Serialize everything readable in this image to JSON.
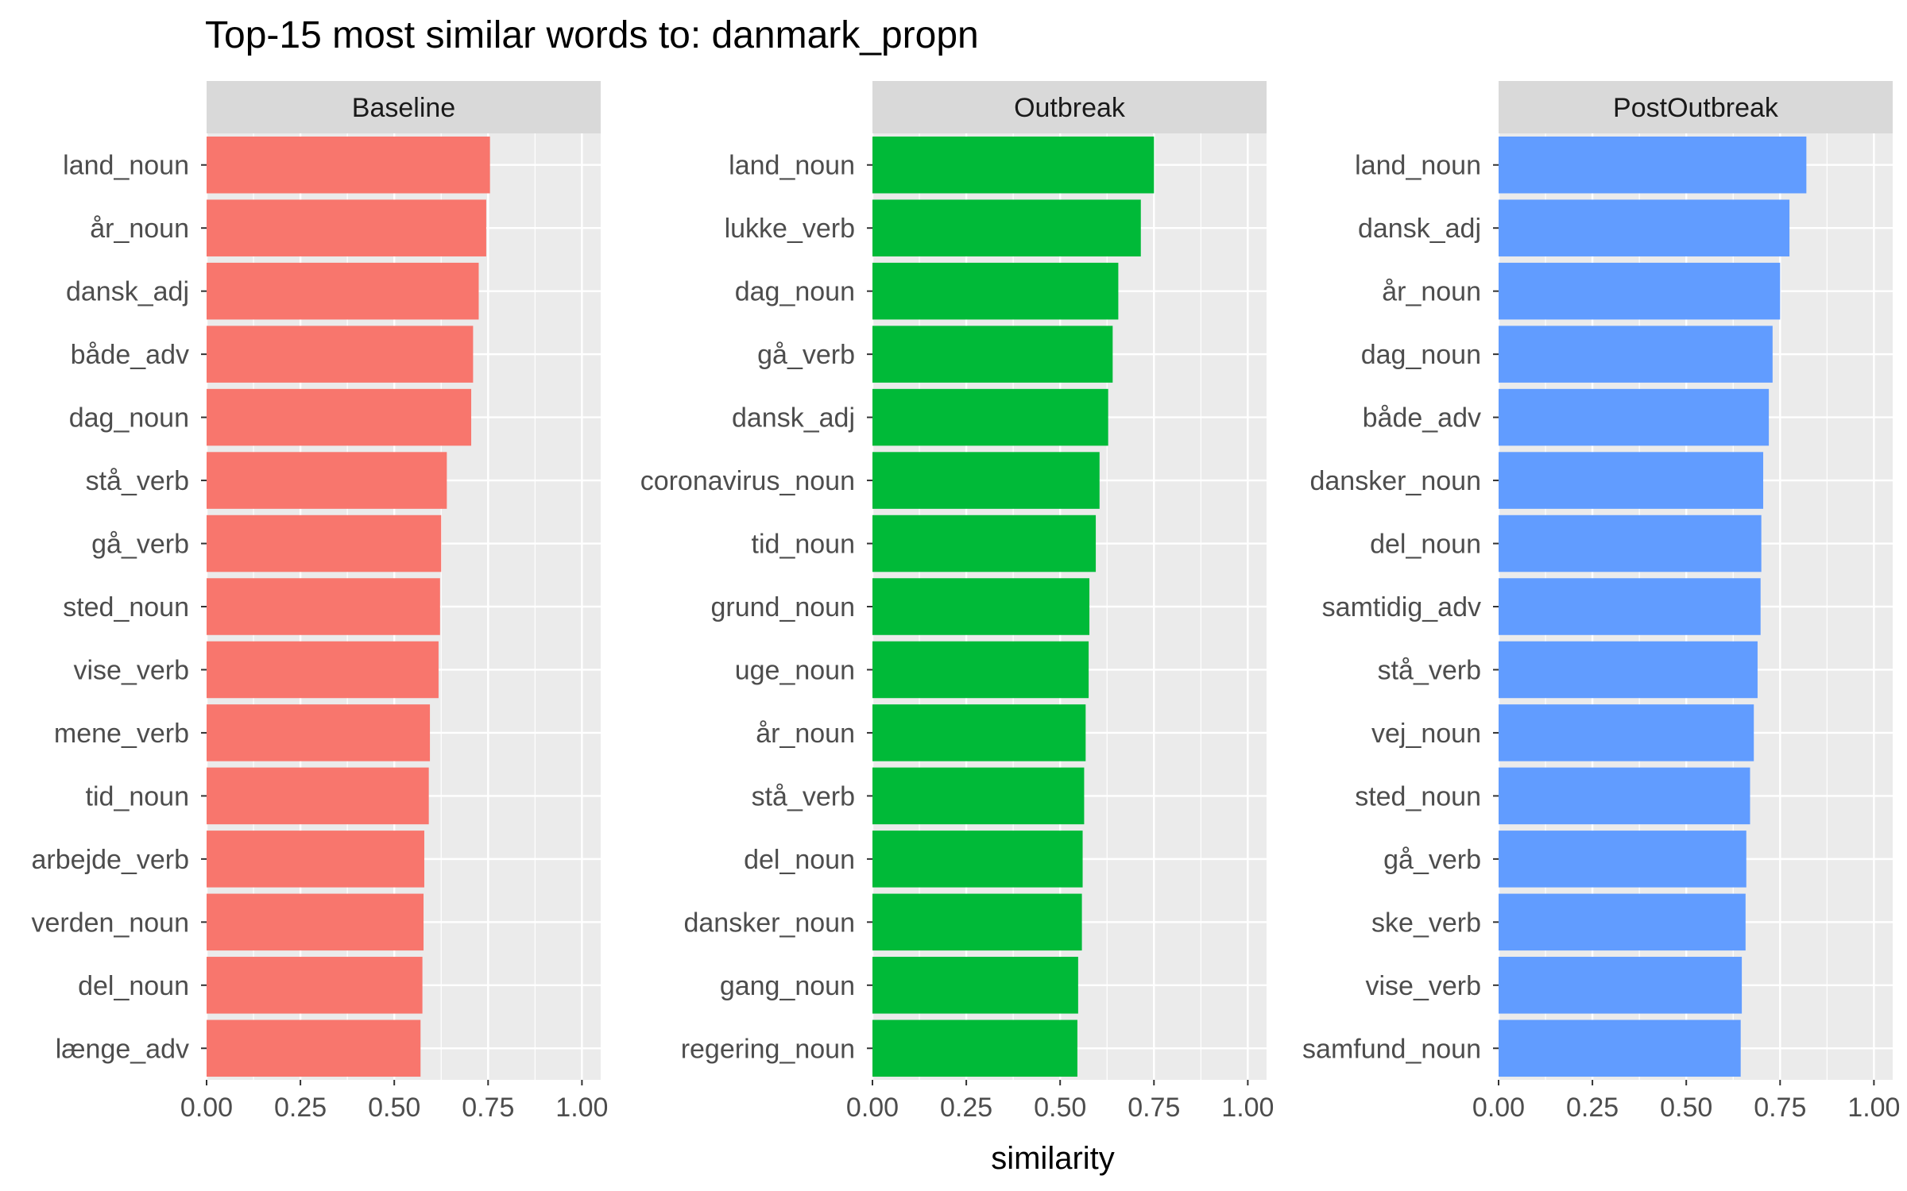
{
  "chart_data": {
    "type": "bar",
    "orientation": "horizontal",
    "title": "Top-15 most similar words to: danmark_propn",
    "xlabel": "similarity",
    "ylabel": "",
    "xlim": [
      0,
      1.05
    ],
    "x_ticks": [
      "0.00",
      "0.25",
      "0.50",
      "0.75",
      "1.00"
    ],
    "x_tick_values": [
      0,
      0.25,
      0.5,
      0.75,
      1.0
    ],
    "grid": true,
    "legend": "none",
    "facets": [
      {
        "name": "Baseline",
        "color": "#F8766D",
        "categories": [
          "land_noun",
          "år_noun",
          "dansk_adj",
          "både_adv",
          "dag_noun",
          "stå_verb",
          "gå_verb",
          "sted_noun",
          "vise_verb",
          "mene_verb",
          "tid_noun",
          "arbejde_verb",
          "verden_noun",
          "del_noun",
          "længe_adv"
        ],
        "values": [
          0.755,
          0.745,
          0.725,
          0.71,
          0.705,
          0.64,
          0.625,
          0.622,
          0.618,
          0.595,
          0.592,
          0.58,
          0.578,
          0.575,
          0.57
        ]
      },
      {
        "name": "Outbreak",
        "color": "#00BA38",
        "categories": [
          "land_noun",
          "lukke_verb",
          "dag_noun",
          "gå_verb",
          "dansk_adj",
          "coronavirus_noun",
          "tid_noun",
          "grund_noun",
          "uge_noun",
          "år_noun",
          "stå_verb",
          "del_noun",
          "dansker_noun",
          "gang_noun",
          "regering_noun"
        ],
        "values": [
          0.75,
          0.715,
          0.655,
          0.64,
          0.628,
          0.605,
          0.595,
          0.578,
          0.576,
          0.568,
          0.564,
          0.56,
          0.558,
          0.548,
          0.546
        ]
      },
      {
        "name": "PostOutbreak",
        "color": "#619CFF",
        "categories": [
          "land_noun",
          "dansk_adj",
          "år_noun",
          "dag_noun",
          "både_adv",
          "dansker_noun",
          "del_noun",
          "samtidig_adv",
          "stå_verb",
          "vej_noun",
          "sted_noun",
          "gå_verb",
          "ske_verb",
          "vise_verb",
          "samfund_noun"
        ],
        "values": [
          0.82,
          0.775,
          0.75,
          0.73,
          0.72,
          0.705,
          0.7,
          0.698,
          0.69,
          0.68,
          0.67,
          0.66,
          0.658,
          0.648,
          0.645
        ]
      }
    ]
  }
}
